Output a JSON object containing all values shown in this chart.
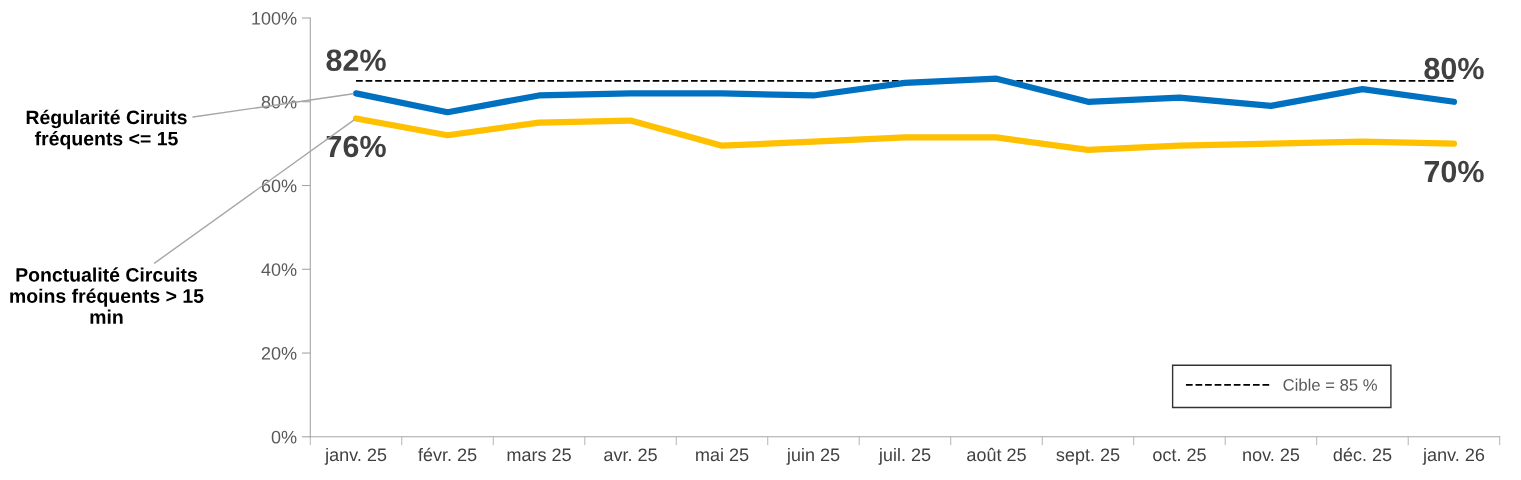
{
  "chart_data": {
    "type": "line",
    "categories": [
      "janv. 25",
      "févr. 25",
      "mars 25",
      "avr. 25",
      "mai 25",
      "juin 25",
      "juil. 25",
      "août 25",
      "sept. 25",
      "oct. 25",
      "nov. 25",
      "déc. 25",
      "janv. 26"
    ],
    "series": [
      {
        "name": "Régularité Ciruits fréquents <= 15",
        "color": "#0070c0",
        "values": [
          82,
          77.5,
          81.5,
          82,
          82,
          81.5,
          84.5,
          85.5,
          80,
          81,
          79,
          83,
          80
        ],
        "value_labels": [
          "82%",
          null,
          null,
          null,
          null,
          null,
          null,
          null,
          null,
          null,
          null,
          null,
          "80%"
        ]
      },
      {
        "name": "Ponctualité Circuits moins fréquents > 15 min",
        "color": "#ffc000",
        "values": [
          76,
          72,
          75,
          75.5,
          69.5,
          70.5,
          71.5,
          71.5,
          68.5,
          69.5,
          70,
          70.5,
          70
        ],
        "value_labels": [
          "76%",
          null,
          null,
          null,
          null,
          null,
          null,
          null,
          null,
          null,
          null,
          null,
          "70%"
        ]
      }
    ],
    "ylim": [
      0,
      100
    ],
    "yticks": [
      {
        "value": 0,
        "label": "0%"
      },
      {
        "value": 20,
        "label": "20%"
      },
      {
        "value": 40,
        "label": "40%"
      },
      {
        "value": 60,
        "label": "60%"
      },
      {
        "value": 80,
        "label": "80%"
      },
      {
        "value": 100,
        "label": "100%"
      }
    ],
    "ref_lines": [
      {
        "axis": "y",
        "value": 85,
        "label": "Cible = 85 %",
        "color": "#000000",
        "line_style": "dashed"
      }
    ],
    "legend": "bottom right",
    "grid": false,
    "line_style": "solid",
    "marker": "none"
  }
}
